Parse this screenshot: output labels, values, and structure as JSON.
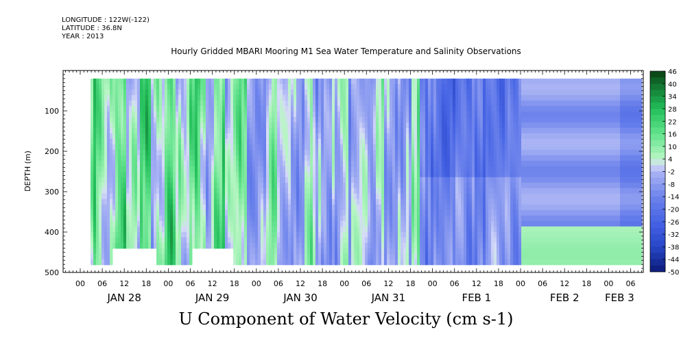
{
  "header": {
    "longitude": "LONGITUDE : 122W(-122)",
    "latitude": "LATITUDE : 36.8N",
    "year": "YEAR : 2013"
  },
  "chart_data": {
    "type": "heatmap",
    "title": "Hourly Gridded MBARI Mooring M1 Sea Water Temperature and Salinity Observations",
    "xlabel": "",
    "ylabel": "DEPTH (m)",
    "bottom_title": "U Component of Water Velocity (cm s-1)",
    "ylim": [
      500,
      0
    ],
    "y_ticks": [
      100,
      200,
      300,
      400,
      500
    ],
    "x_hour_ticks": [
      "00",
      "06",
      "12",
      "18",
      "00",
      "06",
      "12",
      "18",
      "00",
      "06",
      "12",
      "18",
      "00",
      "06",
      "12",
      "18",
      "00",
      "06",
      "12",
      "18",
      "00",
      "06",
      "12",
      "18",
      "00",
      "06"
    ],
    "x_day_labels": [
      "JAN 28",
      "JAN 29",
      "JAN 30",
      "JAN 31",
      "FEB  1",
      "FEB  2",
      "FEB  3"
    ],
    "colorbar_labels": [
      "46",
      "40",
      "34",
      "28",
      "22",
      "16",
      "10",
      "4",
      "-2",
      "-8",
      "-14",
      "-20",
      "-26",
      "-32",
      "-38",
      "-44",
      "-50"
    ],
    "colorbar_range": [
      -50,
      46
    ],
    "colorbar_step": 3,
    "depth_range_observed": [
      20,
      480
    ],
    "colors": {
      "positive_dark": "#0a3d12",
      "positive_mid": "#22c35a",
      "positive_light": "#9ef0b4",
      "neutral_light": "#d8dcf8",
      "negative_mid": "#5f74e6",
      "negative_dark": "#0b1a78"
    }
  }
}
